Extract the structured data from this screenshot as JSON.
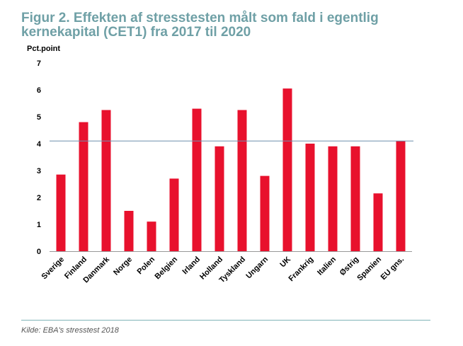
{
  "title_line1": "Figur 2. Effekten af stresstesten målt som fald i egentlig",
  "title_line2": "kernekapital (CET1) fra 2017 til 2020",
  "source": "Kilde: EBA's stresstest 2018",
  "colors": {
    "bar": "#e8112d",
    "title": "#6fa0a6",
    "reference_line": "#6f8fae"
  },
  "chart_data": {
    "type": "bar",
    "ylabel": "Pct.point",
    "xlabel": "",
    "ylim": [
      0,
      7
    ],
    "yticks": [
      0,
      1,
      2,
      3,
      4,
      5,
      6,
      7
    ],
    "grid": false,
    "reference_line": 4.1,
    "categories": [
      "Sverige",
      "Finland",
      "Danmark",
      "Norge",
      "Polen",
      "Belgien",
      "Irland",
      "Holland",
      "Tyskland",
      "Ungarn",
      "UK",
      "Frankrig",
      "Italien",
      "Østrig",
      "Spanien",
      "EU gns."
    ],
    "values": [
      2.85,
      4.8,
      5.25,
      1.5,
      1.1,
      2.7,
      5.3,
      3.9,
      5.25,
      2.8,
      6.05,
      4.0,
      3.9,
      3.9,
      2.15,
      4.1
    ]
  }
}
